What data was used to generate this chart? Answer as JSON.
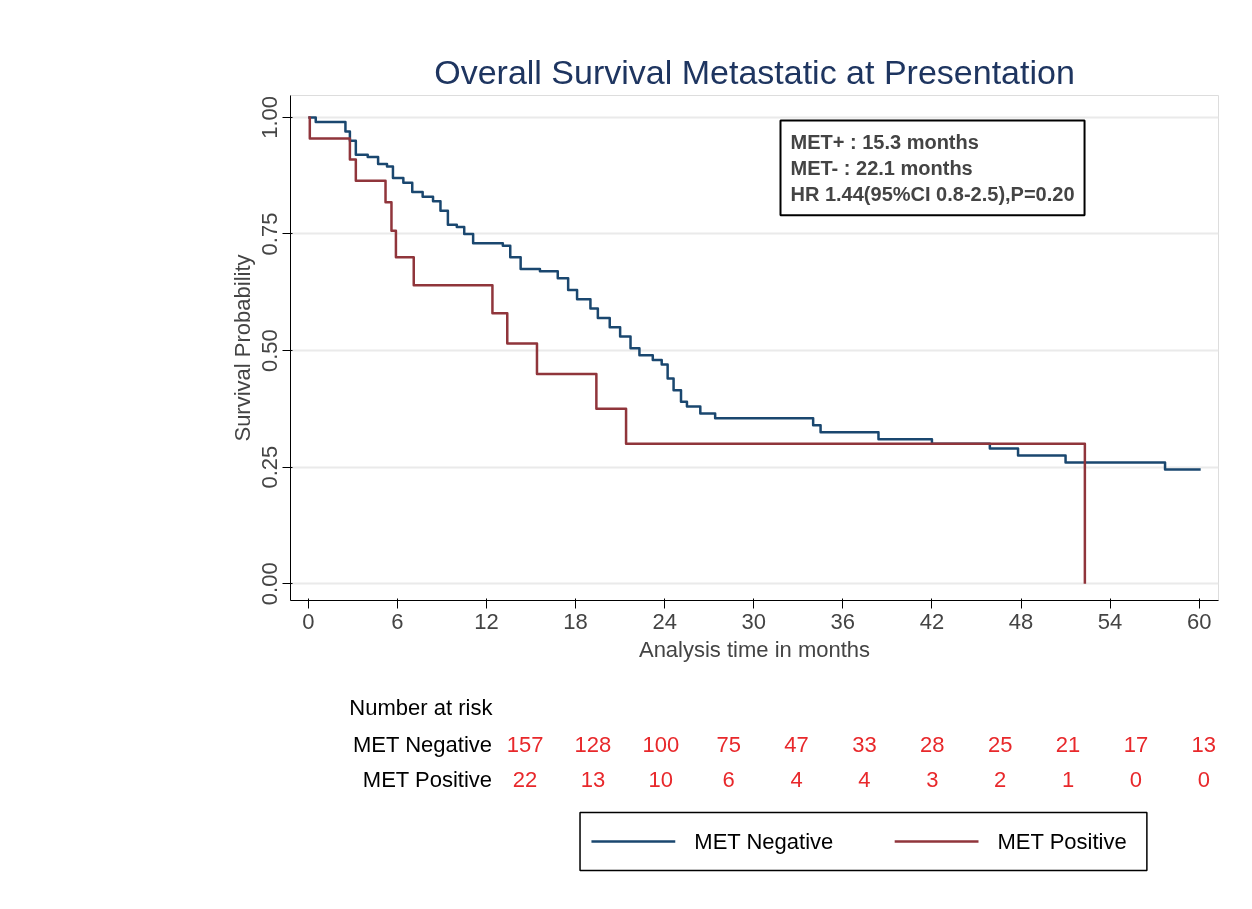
{
  "chart_data": {
    "type": "step",
    "title": "Overall Survival Metastatic at Presentation",
    "xlabel": "Analysis time in months",
    "ylabel": "Survival Probability",
    "xlim": [
      -1.2,
      61.3
    ],
    "ylim": [
      -0.036,
      1.047
    ],
    "xticks": [
      0,
      6,
      12,
      18,
      24,
      30,
      36,
      42,
      48,
      54,
      60
    ],
    "yticks": [
      {
        "value": 0,
        "label": "0.00"
      },
      {
        "value": 0.25,
        "label": "0.25"
      },
      {
        "value": 0.5,
        "label": "0.50"
      },
      {
        "value": 0.75,
        "label": "0.75"
      },
      {
        "value": 1,
        "label": "1.00"
      }
    ],
    "grid": "y",
    "legend": "bottom",
    "line_style": "solid",
    "series": [
      {
        "name": "MET Negative",
        "color": "#1a476f",
        "x": [
          0,
          0.5,
          2.5,
          2.8,
          3.2,
          4.0,
          4.7,
          5.3,
          5.7,
          6.4,
          7.0,
          7.7,
          8.4,
          8.9,
          9.4,
          10.0,
          10.5,
          11.1,
          13.1,
          13.6,
          14.3,
          15.6,
          16.8,
          17.5,
          18.1,
          19.0,
          19.5,
          20.3,
          21.0,
          21.7,
          22.3,
          23.2,
          23.8,
          24.2,
          24.6,
          25.1,
          25.5,
          26.4,
          27.4,
          34.0,
          34.5,
          38.4,
          42.0,
          45.9,
          47.8,
          51.0,
          57.7,
          60.1
        ],
        "values": [
          1.0,
          0.99,
          0.97,
          0.95,
          0.92,
          0.915,
          0.9,
          0.895,
          0.87,
          0.86,
          0.84,
          0.83,
          0.82,
          0.8,
          0.77,
          0.765,
          0.75,
          0.73,
          0.725,
          0.7,
          0.675,
          0.67,
          0.655,
          0.63,
          0.61,
          0.59,
          0.57,
          0.55,
          0.53,
          0.505,
          0.49,
          0.48,
          0.47,
          0.44,
          0.415,
          0.39,
          0.38,
          0.365,
          0.355,
          0.34,
          0.325,
          0.31,
          0.3,
          0.29,
          0.275,
          0.26,
          0.245,
          0.245
        ]
      },
      {
        "name": "MET Positive",
        "color": "#90353b",
        "x": [
          0,
          0.1,
          2.8,
          3.2,
          5.2,
          5.6,
          5.9,
          7.1,
          12.4,
          13.4,
          15.4,
          19.4,
          21.4,
          52.3
        ],
        "values": [
          1.0,
          0.955,
          0.91,
          0.864,
          0.818,
          0.757,
          0.7,
          0.64,
          0.58,
          0.515,
          0.45,
          0.375,
          0.3,
          0.0
        ]
      }
    ],
    "annotations": [
      "MET+ : 15.3 months",
      "MET-  :  22.1 months",
      "HR 1.44(95%CI 0.8-2.5),P=0.20",
      "Number at risk",
      "MET Negative",
      "157",
      "128",
      "100",
      "75",
      "47",
      "33",
      "28",
      "25",
      "21",
      "17",
      "13",
      "MET Positive",
      "22",
      "13",
      "10",
      "6",
      "4",
      "4",
      "3",
      "2",
      "1",
      "0",
      "0"
    ]
  }
}
